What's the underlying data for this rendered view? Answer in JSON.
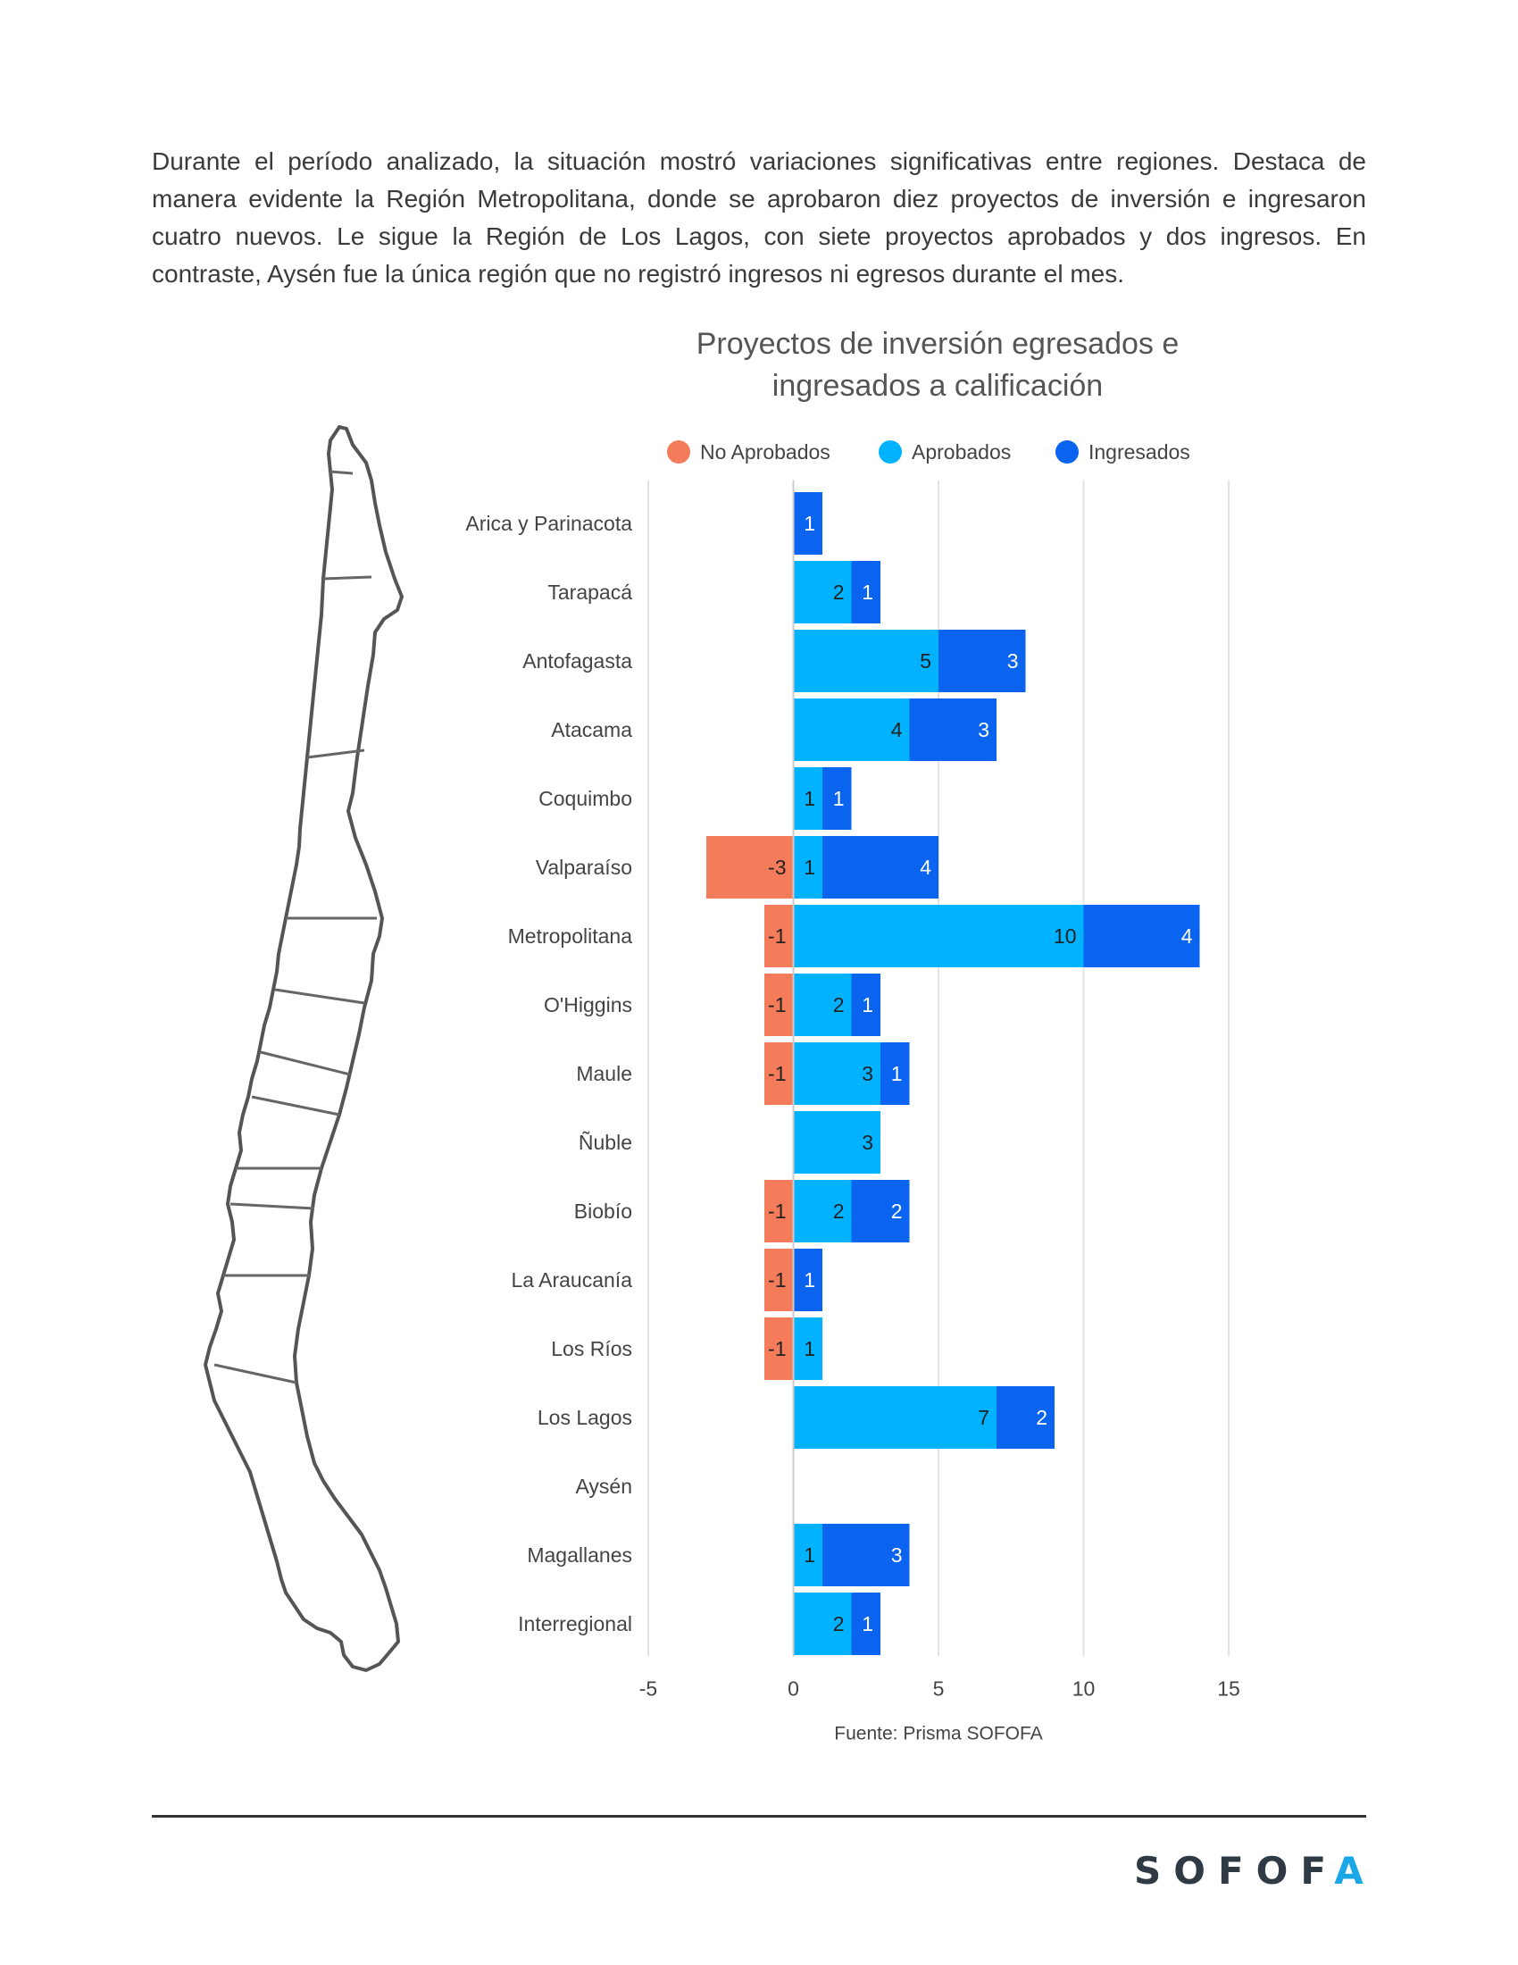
{
  "intro_text": "Durante el período analizado, la situación mostró variaciones significativas entre regiones. Destaca de manera evidente la Región Metropolitana, donde se aprobaron diez proyectos de inversión e ingresaron cuatro nuevos. Le sigue la Región de Los Lagos, con siete proyectos aprobados y dos ingresos. En contraste, Aysén fue la única región que no registró ingresos ni egresos durante el mes.",
  "chart_data": {
    "type": "bar",
    "orientation": "horizontal",
    "stacked": true,
    "title_line1": "Proyectos de inversión egresados e",
    "title_line2": "ingresados a calificación",
    "categories": [
      "Arica y Parinacota",
      "Tarapacá",
      "Antofagasta",
      "Atacama",
      "Coquimbo",
      "Valparaíso",
      "Metropolitana",
      "O'Higgins",
      "Maule",
      "Ñuble",
      "Biobío",
      "La Araucanía",
      "Los Ríos",
      "Los Lagos",
      "Aysén",
      "Magallanes",
      "Interregional"
    ],
    "series": [
      {
        "name": "No Aprobados",
        "color": "#F47C5A",
        "values": [
          0,
          0,
          0,
          0,
          0,
          -3,
          -1,
          -1,
          -1,
          0,
          -1,
          -1,
          -1,
          0,
          0,
          0,
          0
        ]
      },
      {
        "name": "Aprobados",
        "color": "#00B2FF",
        "values": [
          0,
          2,
          5,
          4,
          1,
          1,
          10,
          2,
          3,
          3,
          2,
          0,
          1,
          7,
          0,
          1,
          2
        ]
      },
      {
        "name": "Ingresados",
        "color": "#0A64F0",
        "values": [
          1,
          1,
          3,
          3,
          1,
          4,
          4,
          1,
          1,
          0,
          2,
          1,
          0,
          2,
          0,
          3,
          1
        ]
      }
    ],
    "xlim": [
      -5,
      15
    ],
    "xticks": [
      -5,
      0,
      5,
      10,
      15
    ],
    "grid": true,
    "legend_position": "top",
    "source": "Fuente: Prisma SOFOFA"
  },
  "logo": {
    "text": "SOFOF",
    "accent": "A"
  }
}
